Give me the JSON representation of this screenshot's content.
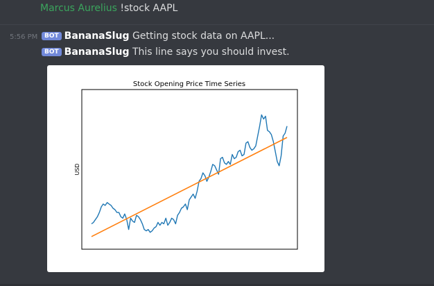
{
  "chat": {
    "top_message": {
      "author": "Marcus Aurelius",
      "content": "!stock AAPL"
    },
    "timestamp": "5:56 PM",
    "bot_messages": [
      {
        "badge": "BOT",
        "author": "BananaSlug",
        "content": "Getting stock data on AAPL..."
      },
      {
        "badge": "BOT",
        "author": "BananaSlug",
        "content": "This line says you should invest."
      }
    ]
  },
  "colors": {
    "background": "#36393f",
    "username_green": "#3ba55d",
    "bot_badge": "#7289da",
    "series_blue": "#1f77b4",
    "trend_orange": "#ff7f0e"
  },
  "chart_data": {
    "type": "line",
    "title": "Stock Opening Price Time Series",
    "xlabel": "",
    "ylabel": "USD",
    "grid": false,
    "ylim": [
      0,
      100
    ],
    "xlim": [
      0,
      100
    ],
    "series": [
      {
        "x": [
          0,
          1,
          2,
          3,
          4,
          5,
          6,
          7,
          8,
          9,
          10,
          11,
          12,
          13,
          14,
          15,
          16,
          17,
          18,
          19,
          20,
          21,
          22,
          23,
          24,
          25,
          26,
          27,
          28,
          29,
          30,
          31,
          32,
          33,
          34,
          35,
          36,
          37,
          38,
          39,
          40,
          41,
          42,
          43,
          44,
          45,
          46,
          47,
          48,
          49,
          50,
          51,
          52,
          53,
          54,
          55,
          56,
          57,
          58,
          59,
          60,
          61,
          62,
          63,
          64,
          65,
          66,
          67,
          68,
          69,
          70,
          71,
          72,
          73,
          74,
          75,
          76,
          77,
          78,
          79,
          80,
          81,
          82,
          83,
          84,
          85,
          86,
          87,
          88,
          89,
          90,
          91,
          92,
          93,
          94,
          95,
          96,
          97,
          98,
          99,
          100
        ],
        "values": [
          14,
          15,
          17,
          19,
          22,
          26,
          28,
          27,
          29,
          28,
          27,
          25,
          24,
          22,
          22,
          19,
          18,
          21,
          17,
          10,
          18,
          16,
          15,
          20,
          19,
          17,
          14,
          10,
          9,
          10,
          8,
          9,
          11,
          12,
          15,
          13,
          15,
          14,
          18,
          13,
          15,
          18,
          17,
          14,
          20,
          22,
          25,
          26,
          28,
          24,
          31,
          33,
          35,
          32,
          37,
          44,
          46,
          50,
          48,
          44,
          47,
          51,
          56,
          55,
          52,
          49,
          60,
          61,
          57,
          56,
          58,
          56,
          63,
          60,
          61,
          65,
          66,
          62,
          63,
          71,
          72,
          68,
          66,
          67,
          69,
          76,
          83,
          91,
          88,
          90,
          80,
          79,
          77,
          72,
          65,
          58,
          55,
          62,
          76,
          78,
          83
        ]
      },
      {
        "x": [
          0,
          100
        ],
        "values": [
          5,
          75
        ]
      }
    ]
  }
}
